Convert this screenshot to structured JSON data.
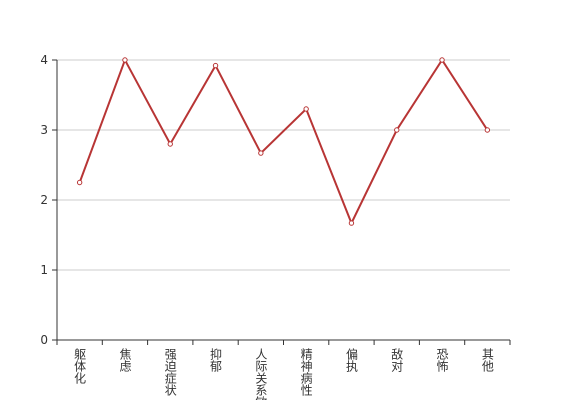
{
  "chart_data": {
    "type": "line",
    "categories": [
      "躯体化",
      "焦虑",
      "强迫症状",
      "抑郁",
      "人际关系敏感",
      "精神病性",
      "偏执",
      "敌对",
      "恐怖",
      "其他"
    ],
    "values": [
      2.25,
      4,
      2.8,
      3.92,
      2.67,
      3.3,
      1.67,
      3,
      4,
      3
    ],
    "color": "#b83535",
    "ylim": [
      0,
      4
    ],
    "yticks": [
      0,
      1,
      2,
      3,
      4
    ],
    "grid": true
  }
}
